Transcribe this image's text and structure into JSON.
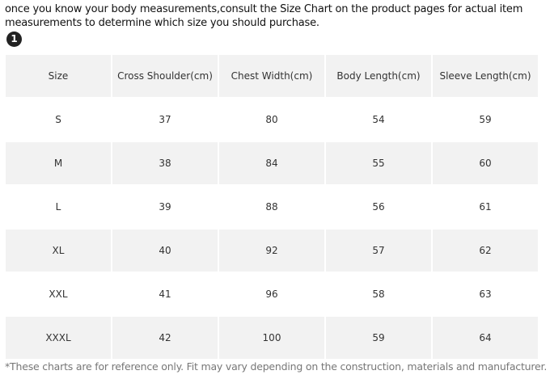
{
  "intro": {
    "lines": [
      "once you know your body measurements,consult the Size Chart on the product pages for actual item",
      "measurements to determine which size you should purchase."
    ],
    "badge": "1"
  },
  "table": {
    "header": [
      "Size",
      "Cross Shoulder(cm)",
      "Chest Width(cm)",
      "Body Length(cm)",
      "Sleeve Length(cm)"
    ],
    "rows": [
      [
        "S",
        37,
        80,
        54,
        59
      ],
      [
        "M",
        38,
        84,
        55,
        60
      ],
      [
        "L",
        39,
        88,
        56,
        61
      ],
      [
        "XL",
        40,
        92,
        57,
        62
      ],
      [
        "XXL",
        41,
        96,
        58,
        63
      ],
      [
        "XXXL",
        42,
        100,
        59,
        64
      ]
    ]
  },
  "footnote": "*These charts are for reference only. Fit may vary depending on the construction, materials and manufacturer."
}
